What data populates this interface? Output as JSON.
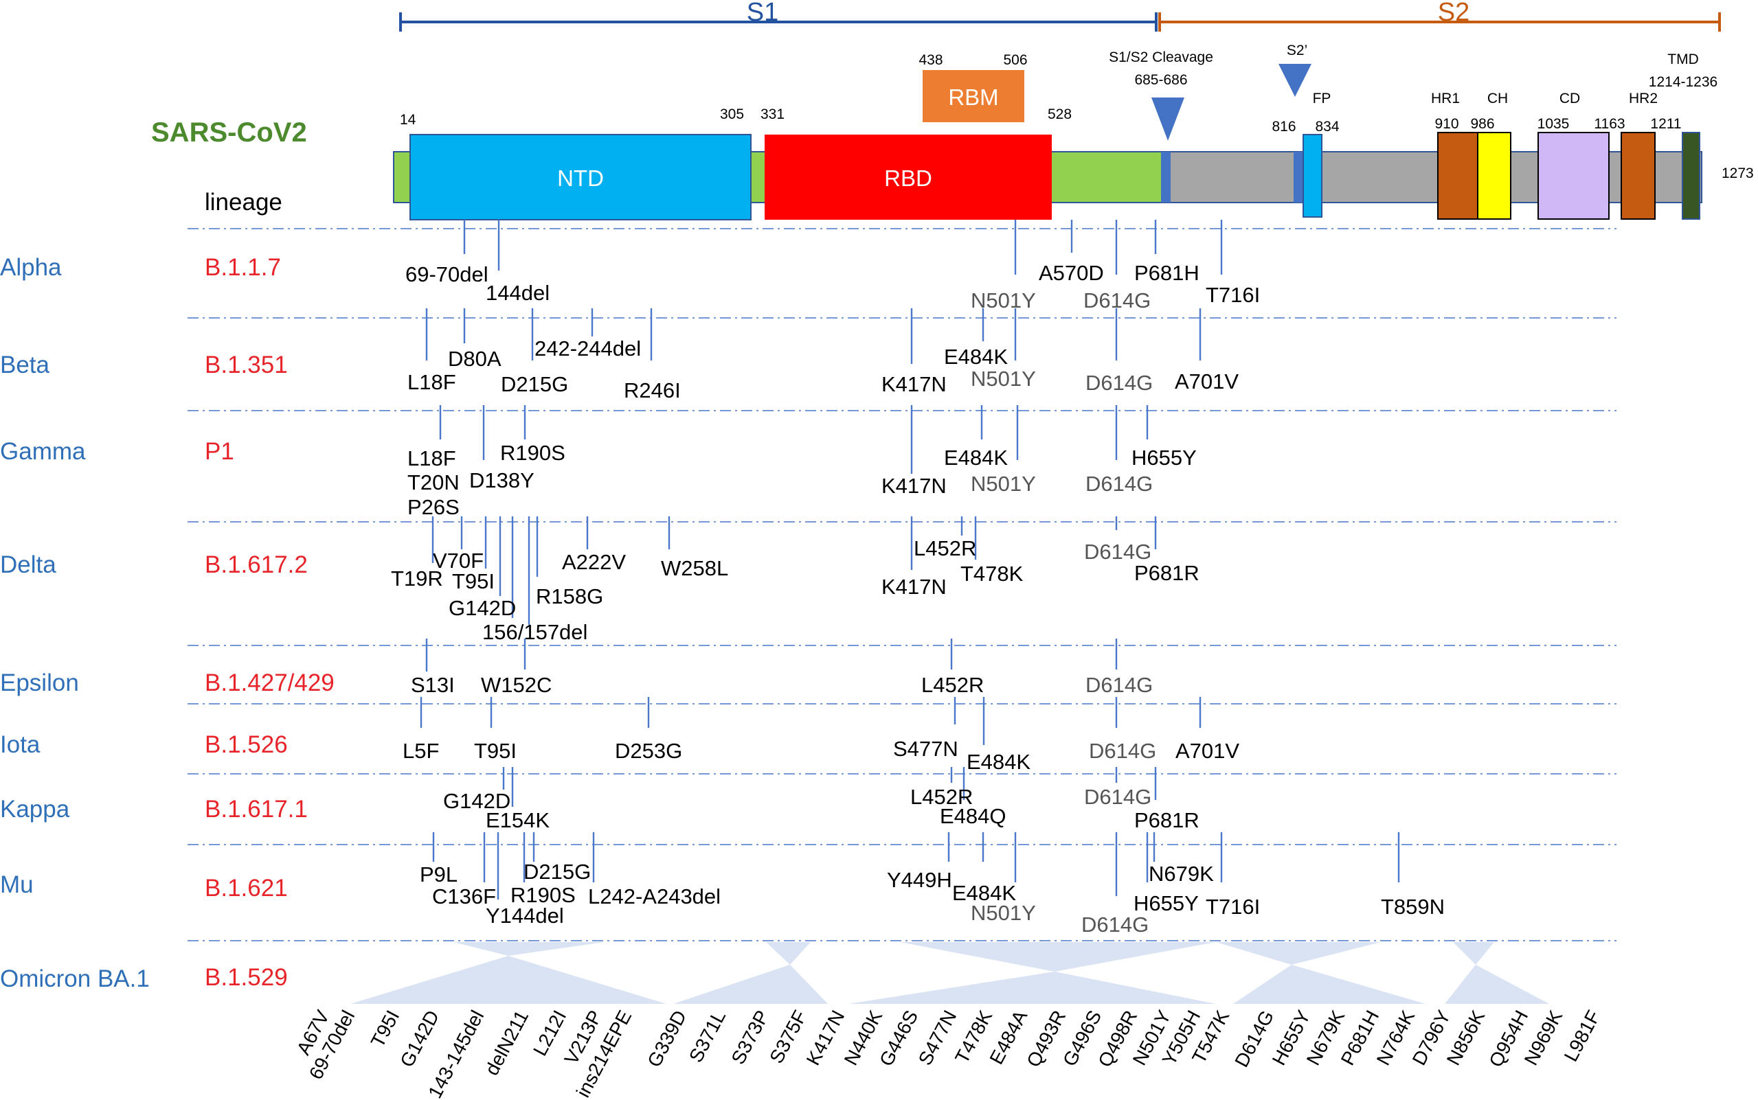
{
  "figure": {
    "protein": "SARS-CoV2",
    "lineage_header": "lineage",
    "s1_label": "S1",
    "s2_label": "S2",
    "colors": {
      "s1": "#2352a0",
      "s2": "#c55a11",
      "protein_label": "#4d8a2e",
      "variant": "#2f6fb8",
      "lineage": "#e8242b",
      "ntd": "#00b0f0",
      "rbd": "#ff0000",
      "rbm": "#ed7d31",
      "backbone_s1": "#92d050",
      "backbone_s2": "#a6a6a6",
      "hr": "#c55a11",
      "ch": "#ffff00",
      "cd": "#cfb8f5",
      "tmd": "#375623",
      "fp": "#00b0f0",
      "triangle": "#4472c4",
      "omicron_fan": "#dae3f3"
    }
  },
  "domains": {
    "ntd": {
      "label": "NTD",
      "start": "14",
      "end": "305"
    },
    "rbd": {
      "label": "RBD",
      "start": "331",
      "end": "528"
    },
    "rbm": {
      "label": "RBM",
      "start": "438",
      "end": "506"
    },
    "cleavage": {
      "label": "S1/S2  Cleavage",
      "range": "685-686"
    },
    "s2prime": {
      "label": "S2’"
    },
    "fp": {
      "label": "FP",
      "start": "816",
      "end": "834"
    },
    "hr1": {
      "label": "HR1",
      "start": "910"
    },
    "ch": {
      "label": "CH",
      "start": "986"
    },
    "cd": {
      "label": "CD",
      "start": "1035"
    },
    "hr2": {
      "label": "HR2",
      "start": "1163",
      "end": "1211"
    },
    "tmd": {
      "label": "TMD",
      "range": "1214-1236"
    },
    "length": "1273"
  },
  "variants": [
    {
      "name": "Alpha",
      "lineage": "B.1.1.7",
      "mutations": [
        "69-70del",
        "144del",
        "A570D",
        "P681H",
        "T716I"
      ],
      "shared": [
        "N501Y",
        "D614G"
      ]
    },
    {
      "name": "Beta",
      "lineage": "B.1.351",
      "mutations": [
        "L18F",
        "D80A",
        "D215G",
        "242-244del",
        "R246I",
        "K417N",
        "E484K",
        "A701V"
      ],
      "shared": [
        "N501Y",
        "D614G"
      ]
    },
    {
      "name": "Gamma",
      "lineage": "P1",
      "mutations": [
        "L18F",
        "T20N",
        "P26S",
        "D138Y",
        "R190S",
        "K417N",
        "E484K",
        "H655Y"
      ],
      "shared": [
        "N501Y",
        "D614G"
      ]
    },
    {
      "name": "Delta",
      "lineage": "B.1.617.2",
      "mutations": [
        "T19R",
        "V70F",
        "T95I",
        "G142D",
        "156/157del",
        "R158G",
        "A222V",
        "W258L",
        "K417N",
        "L452R",
        "T478K",
        "P681R"
      ],
      "shared": [
        "D614G"
      ]
    },
    {
      "name": "Epsilon",
      "lineage": "B.1.427/429",
      "mutations": [
        "S13I",
        "W152C",
        "L452R"
      ],
      "shared": [
        "D614G"
      ]
    },
    {
      "name": "Iota",
      "lineage": "B.1.526",
      "mutations": [
        "L5F",
        "T95I",
        "D253G",
        "S477N",
        "E484K",
        "A701V"
      ],
      "shared": [
        "D614G"
      ]
    },
    {
      "name": "Kappa",
      "lineage": "B.1.617.1",
      "mutations": [
        "G142D",
        "E154K",
        "L452R",
        "E484Q",
        "P681R"
      ],
      "shared": [
        "D614G"
      ]
    },
    {
      "name": "Mu",
      "lineage": "B.1.621",
      "mutations": [
        "P9L",
        "C136F",
        "Y144del",
        "R190S",
        "D215G",
        "L242-A243del",
        "Y449H",
        "E484K",
        "H655Y",
        "N679K",
        "T716I",
        "T859N"
      ],
      "shared": [
        "N501Y",
        "D614G"
      ]
    },
    {
      "name": "Omicron BA.1",
      "lineage": "B.1.529",
      "mutations": [
        "A67V",
        "69-70del",
        "T95I",
        "G142D",
        "143-145del",
        "delN211",
        "L212I",
        "V213P",
        "ins214EPE",
        "G339D",
        "S371L",
        "S373P",
        "S375F",
        "K417N",
        "N440K",
        "G446S",
        "S477N",
        "T478K",
        "E484A",
        "Q493R",
        "G496S",
        "Q498R",
        "N501Y",
        "Y505H",
        "T547K",
        "D614G",
        "H655Y",
        "N679K",
        "P681H",
        "N764K",
        "D796Y",
        "N856K",
        "Q954H",
        "N969K",
        "L981F"
      ],
      "shared": []
    }
  ]
}
